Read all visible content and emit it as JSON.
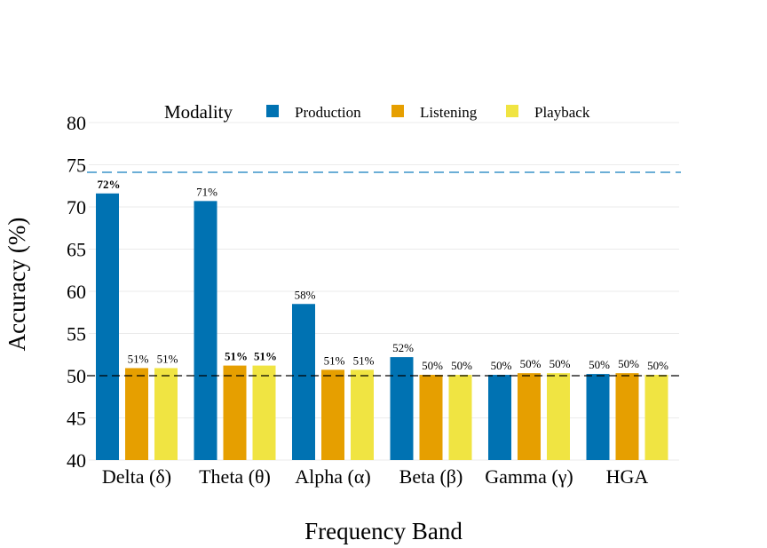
{
  "chart_data": {
    "type": "bar",
    "title": "",
    "xlabel": "Frequency Band",
    "ylabel": "Accuracy (%)",
    "ylim": [
      40,
      80
    ],
    "yticks": [
      40,
      45,
      50,
      55,
      60,
      65,
      70,
      75,
      80
    ],
    "grid": "horizontal",
    "legend": {
      "title": "Modality",
      "placement": "top"
    },
    "categories": [
      "Delta (δ)",
      "Theta (θ)",
      "Alpha (α)",
      "Beta (β)",
      "Gamma (γ)",
      "HGA"
    ],
    "series": [
      {
        "name": "Production",
        "color": "#0072b2",
        "values": [
          71.6,
          70.7,
          58.5,
          52.2,
          50.1,
          50.2
        ],
        "labels": [
          "72%",
          "71%",
          "58%",
          "52%",
          "50%",
          "50%"
        ],
        "bold": [
          true,
          false,
          false,
          false,
          false,
          false
        ]
      },
      {
        "name": "Listening",
        "color": "#e69f00",
        "values": [
          50.9,
          51.2,
          50.7,
          50.1,
          50.3,
          50.3
        ],
        "labels": [
          "51%",
          "51%",
          "51%",
          "50%",
          "50%",
          "50%"
        ],
        "bold": [
          false,
          true,
          false,
          false,
          false,
          false
        ]
      },
      {
        "name": "Playback",
        "color": "#f0e442",
        "values": [
          50.9,
          51.2,
          50.7,
          50.1,
          50.3,
          50.1
        ],
        "labels": [
          "51%",
          "51%",
          "51%",
          "50%",
          "50%",
          "50%"
        ],
        "bold": [
          false,
          true,
          false,
          false,
          false,
          false
        ]
      }
    ],
    "reference_lines": [
      {
        "value": 74.1,
        "color": "#6baed6",
        "style": "dashed"
      },
      {
        "value": 50,
        "color": "#000000",
        "style": "dashed"
      }
    ]
  }
}
